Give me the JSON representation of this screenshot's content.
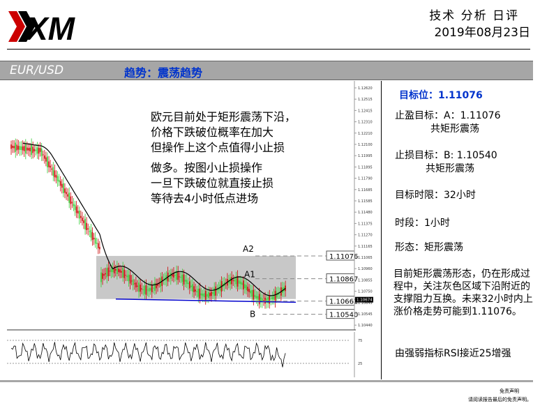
{
  "header": {
    "logo_text": "XM",
    "report_title": "技术 分析 日评",
    "report_date": "2019年08月23日"
  },
  "banner": {
    "pair": "EUR/USD",
    "trend": "趋势：震荡趋势"
  },
  "chart_notes": [
    "欧元目前处于矩形震荡下沿，",
    "价格下跌破位概率在加大",
    "但操作上这个点值得小止损",
    "做多。按图小止损操作",
    "一旦下跌破位就直接止损",
    "等待去4小时低点进场"
  ],
  "chart_data": {
    "type": "candlestick",
    "price_axis_ticks": [
      "1.12620",
      "1.12515",
      "1.12415",
      "1.12310",
      "1.12210",
      "1.12100",
      "1.11995",
      "1.11895",
      "1.11790",
      "1.11685",
      "1.11585",
      "1.11480",
      "1.11375",
      "1.11270",
      "1.11165",
      "1.11065",
      "1.10960",
      "1.10855",
      "1.10750",
      "1.10645",
      "1.10545",
      "1.10440"
    ],
    "rsi_axis_ticks": [
      "75",
      "25"
    ],
    "levels": [
      {
        "label": "A2",
        "value": "1.11076"
      },
      {
        "label": "A1",
        "value": "1.10867"
      },
      {
        "label": "",
        "value": "1.10661"
      },
      {
        "label": "B",
        "value": "1.10540"
      }
    ],
    "current_price_tag": "1.10674",
    "range_box": {
      "high": 1.11076,
      "low": 1.1068
    },
    "support_line": {
      "start": 1.1068,
      "end": 1.1065
    }
  },
  "sidebar": {
    "target": "目标位：1.11076",
    "take_profit_1": "止盈目标：A：1.11076",
    "take_profit_2": "共矩形震荡",
    "stop_loss_1": "止损目标：B: 1.10540",
    "stop_loss_2": "共矩形震荡",
    "time_limit": "目标时限：32小时",
    "timeframe": "时段：1小时",
    "pattern": "形态：矩形震荡",
    "analysis": "目前矩形震荡形态，仍在形成过程中，关注灰色区域下沿附近的支撑阻力互换。未来32小时内上涨价格走势可能到1.11076。",
    "rsi_note": "由强弱指标RSI接近25增强"
  },
  "footer": {
    "line1": "免责声明",
    "line2": "请阅读报告最后的免责声明。"
  },
  "colors": {
    "banner_bg": "#a6a6a6",
    "trend_text": "#0033cc",
    "candle_up": "#33cc33",
    "candle_down": "#cc0000",
    "range_box": "#c8c8c8",
    "support_line": "#0000cc"
  }
}
